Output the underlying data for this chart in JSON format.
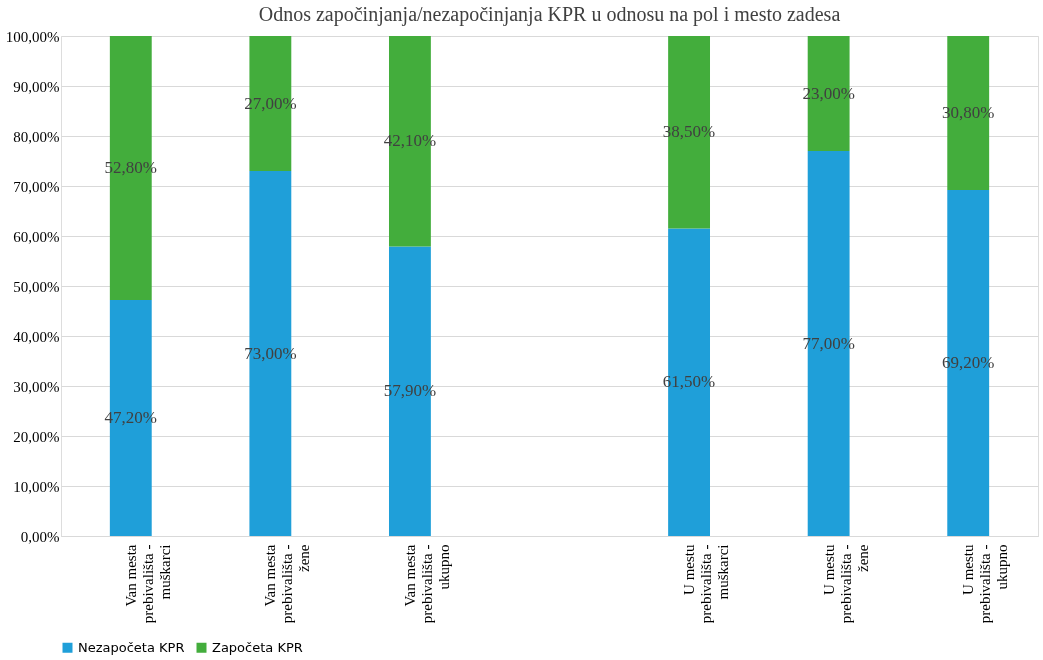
{
  "chart_data": {
    "type": "bar",
    "title": "Odnos započinjanja/nezapočinjanja KPR u odnosu na pol i mesto zadesa",
    "categories": [
      "Van mesta prebivališta - muškarci",
      "Van mesta prebivališta - žene",
      "Van mesta prebivališta - ukupno",
      null,
      "U mestu prebivališta - muškarci",
      "U mestu prebivališta - žene",
      "U mestu prebivališta - ukupno"
    ],
    "stacked": true,
    "series": [
      {
        "name": "Nezapočeta KPR",
        "color": "#1f9fd9",
        "values": [
          47.2,
          73.0,
          57.9,
          null,
          61.5,
          77.0,
          69.2
        ],
        "value_labels": [
          "47,20%",
          "73,00%",
          "57,90%",
          null,
          "61,50%",
          "77,00%",
          "69,20%"
        ]
      },
      {
        "name": "Započeta KPR",
        "color": "#43ad3c",
        "values": [
          52.8,
          27.0,
          42.1,
          null,
          38.5,
          23.0,
          30.8
        ],
        "value_labels": [
          "52,80%",
          "27,00%",
          "42,10%",
          null,
          "38,50%",
          "23,00%",
          "30,80%"
        ]
      }
    ],
    "ylim": [
      0,
      100
    ],
    "yticks": [
      {
        "value": 0,
        "label": "0,00%"
      },
      {
        "value": 10,
        "label": "10,00%"
      },
      {
        "value": 20,
        "label": "20,00%"
      },
      {
        "value": 30,
        "label": "30,00%"
      },
      {
        "value": 40,
        "label": "40,00%"
      },
      {
        "value": 50,
        "label": "50,00%"
      },
      {
        "value": 60,
        "label": "60,00%"
      },
      {
        "value": 70,
        "label": "70,00%"
      },
      {
        "value": 80,
        "label": "80,00%"
      },
      {
        "value": 90,
        "label": "90,00%"
      },
      {
        "value": 100,
        "label": "100,00%"
      }
    ],
    "grid": "y",
    "legend": "bottom"
  }
}
